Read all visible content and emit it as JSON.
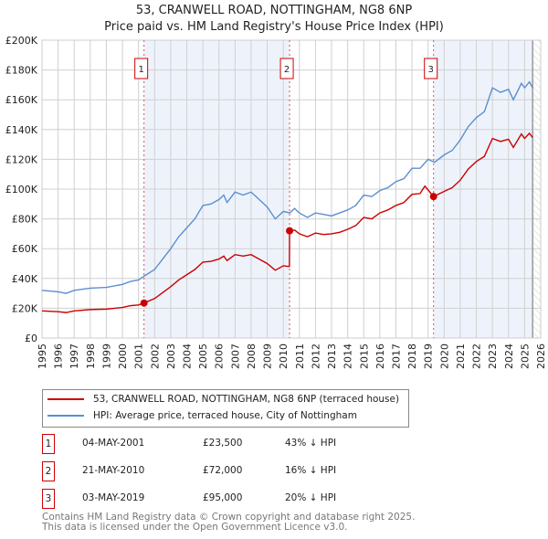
{
  "chart_data": {
    "type": "line",
    "title": "53, CRANWELL ROAD, NOTTINGHAM, NG8 6NP",
    "subtitle": "Price paid vs. HM Land Registry's House Price Index (HPI)",
    "xlim": [
      1995,
      2026
    ],
    "ylim": [
      0,
      200000
    ],
    "y_ticks": [
      0,
      20000,
      40000,
      60000,
      80000,
      100000,
      120000,
      140000,
      160000,
      180000,
      200000
    ],
    "y_tick_labels": [
      "£0",
      "£20K",
      "£40K",
      "£60K",
      "£80K",
      "£100K",
      "£120K",
      "£140K",
      "£160K",
      "£180K",
      "£200K"
    ],
    "x_ticks": [
      "1995",
      "1996",
      "1997",
      "1998",
      "1999",
      "2000",
      "2001",
      "2002",
      "2003",
      "2004",
      "2005",
      "2006",
      "2007",
      "2008",
      "2009",
      "2010",
      "2011",
      "2012",
      "2013",
      "2014",
      "2015",
      "2016",
      "2017",
      "2018",
      "2019",
      "2020",
      "2021",
      "2022",
      "2023",
      "2024",
      "2025",
      "2026"
    ],
    "grid": true,
    "colors": {
      "property": "#cc0000",
      "hpi": "#5b8fd0",
      "shade": "#eef3fb"
    },
    "series": [
      {
        "name": "53, CRANWELL ROAD, NOTTINGHAM, NG8 6NP (terraced house)",
        "points": [
          [
            1995,
            18200
          ],
          [
            1996,
            17700
          ],
          [
            1996.5,
            17100
          ],
          [
            1997,
            18200
          ],
          [
            1998,
            19100
          ],
          [
            1999,
            19400
          ],
          [
            2000,
            20500
          ],
          [
            2000.5,
            21700
          ],
          [
            2001,
            22200
          ],
          [
            2001.34,
            23500
          ],
          [
            2002,
            26500
          ],
          [
            2002.5,
            30500
          ],
          [
            2003,
            34500
          ],
          [
            2003.5,
            39000
          ],
          [
            2004,
            42500
          ],
          [
            2004.5,
            46000
          ],
          [
            2005,
            51000
          ],
          [
            2005.5,
            51500
          ],
          [
            2006,
            53000
          ],
          [
            2006.3,
            55000
          ],
          [
            2006.5,
            52000
          ],
          [
            2007,
            56000
          ],
          [
            2007.5,
            55000
          ],
          [
            2008,
            56000
          ],
          [
            2008.5,
            53000
          ],
          [
            2009,
            50000
          ],
          [
            2009.5,
            45500
          ],
          [
            2010,
            48500
          ],
          [
            2010.38,
            48000
          ],
          [
            2010.39,
            72000
          ],
          [
            2010.7,
            72500
          ],
          [
            2011,
            70000
          ],
          [
            2011.5,
            68000
          ],
          [
            2012,
            70500
          ],
          [
            2012.5,
            69500
          ],
          [
            2013,
            70000
          ],
          [
            2013.5,
            71000
          ],
          [
            2014,
            73000
          ],
          [
            2014.5,
            75500
          ],
          [
            2015,
            81000
          ],
          [
            2015.5,
            80000
          ],
          [
            2016,
            84000
          ],
          [
            2016.5,
            86000
          ],
          [
            2017,
            89000
          ],
          [
            2017.5,
            91000
          ],
          [
            2018,
            96500
          ],
          [
            2018.5,
            97000
          ],
          [
            2018.8,
            102000
          ],
          [
            2019.34,
            95000
          ],
          [
            2020,
            98500
          ],
          [
            2020.5,
            101000
          ],
          [
            2021,
            106000
          ],
          [
            2021.5,
            113500
          ],
          [
            2022,
            118500
          ],
          [
            2022.5,
            122000
          ],
          [
            2023,
            134000
          ],
          [
            2023.5,
            132000
          ],
          [
            2024,
            133500
          ],
          [
            2024.3,
            128000
          ],
          [
            2024.8,
            137000
          ],
          [
            2025,
            134000
          ],
          [
            2025.3,
            137500
          ],
          [
            2025.5,
            134500
          ]
        ]
      },
      {
        "name": "HPI: Average price, terraced house, City of Nottingham",
        "points": [
          [
            1995,
            32000
          ],
          [
            1996,
            31000
          ],
          [
            1996.5,
            30000
          ],
          [
            1997,
            32000
          ],
          [
            1998,
            33500
          ],
          [
            1999,
            34000
          ],
          [
            2000,
            36000
          ],
          [
            2000.5,
            38000
          ],
          [
            2001,
            39000
          ],
          [
            2001.34,
            41500
          ],
          [
            2002,
            46000
          ],
          [
            2002.5,
            53000
          ],
          [
            2003,
            60000
          ],
          [
            2003.5,
            68000
          ],
          [
            2004,
            74000
          ],
          [
            2004.5,
            80000
          ],
          [
            2005,
            89000
          ],
          [
            2005.5,
            90000
          ],
          [
            2006,
            93000
          ],
          [
            2006.3,
            96000
          ],
          [
            2006.5,
            91000
          ],
          [
            2007,
            98000
          ],
          [
            2007.5,
            96000
          ],
          [
            2008,
            98000
          ],
          [
            2008.5,
            93000
          ],
          [
            2009,
            88000
          ],
          [
            2009.5,
            80000
          ],
          [
            2010,
            85000
          ],
          [
            2010.4,
            84000
          ],
          [
            2010.7,
            87000
          ],
          [
            2011,
            84000
          ],
          [
            2011.5,
            81000
          ],
          [
            2012,
            84000
          ],
          [
            2012.5,
            83000
          ],
          [
            2013,
            82000
          ],
          [
            2013.5,
            84000
          ],
          [
            2014,
            86000
          ],
          [
            2014.5,
            89000
          ],
          [
            2015,
            96000
          ],
          [
            2015.5,
            95000
          ],
          [
            2016,
            99000
          ],
          [
            2016.5,
            101000
          ],
          [
            2017,
            105000
          ],
          [
            2017.5,
            107000
          ],
          [
            2018,
            114000
          ],
          [
            2018.5,
            114000
          ],
          [
            2019,
            120000
          ],
          [
            2019.4,
            118000
          ],
          [
            2020,
            123000
          ],
          [
            2020.5,
            126000
          ],
          [
            2021,
            133000
          ],
          [
            2021.5,
            142000
          ],
          [
            2022,
            148000
          ],
          [
            2022.5,
            152000
          ],
          [
            2023,
            168000
          ],
          [
            2023.5,
            165000
          ],
          [
            2024,
            167000
          ],
          [
            2024.3,
            160000
          ],
          [
            2024.8,
            171000
          ],
          [
            2025,
            168000
          ],
          [
            2025.3,
            172000
          ],
          [
            2025.5,
            168000
          ]
        ]
      }
    ],
    "sales": [
      {
        "label": "1",
        "x": 2001.34,
        "price": 23500,
        "date": "04-MAY-2001",
        "price_text": "£23,500",
        "hpi_text": "43% ↓ HPI"
      },
      {
        "label": "2",
        "x": 2010.39,
        "price": 72000,
        "date": "21-MAY-2010",
        "price_text": "£72,000",
        "hpi_text": "16% ↓ HPI"
      },
      {
        "label": "3",
        "x": 2019.34,
        "price": 95000,
        "date": "03-MAY-2019",
        "price_text": "£95,000",
        "hpi_text": "20% ↓ HPI"
      }
    ],
    "data_end": 2025.5
  },
  "footer": [
    "Contains HM Land Registry data © Crown copyright and database right 2025.",
    "This data is licensed under the Open Government Licence v3.0."
  ]
}
